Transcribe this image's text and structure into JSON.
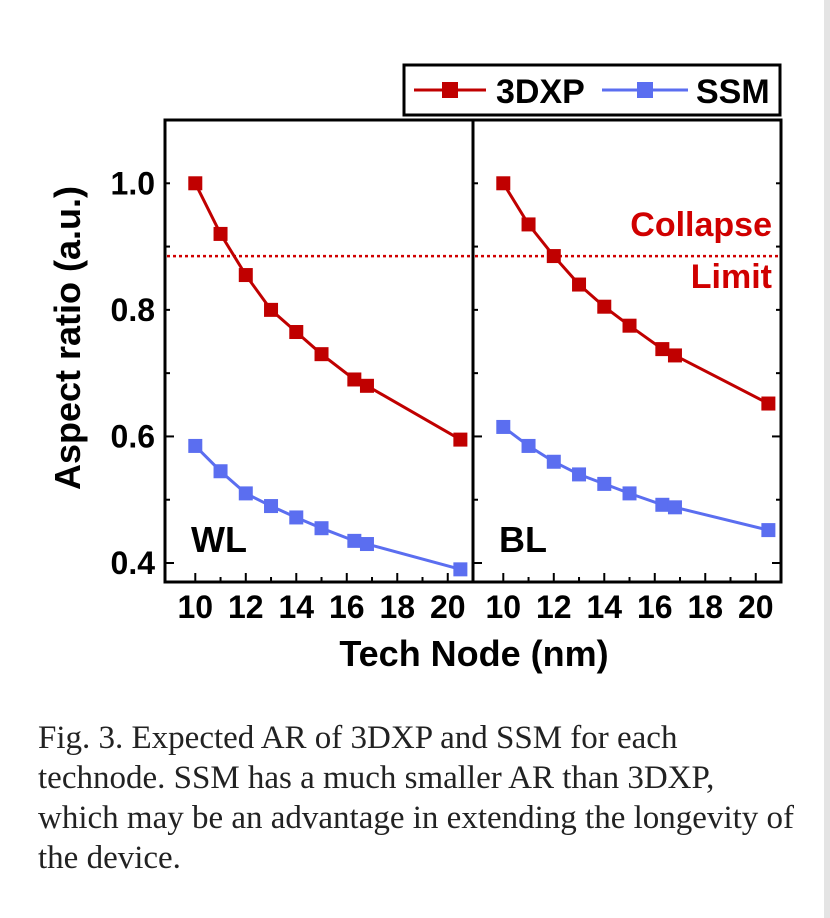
{
  "chart_data": {
    "type": "line",
    "legend": {
      "placement": "top-right",
      "entries": [
        {
          "name": "3DXP",
          "color": "#c00000"
        },
        {
          "name": "SSM",
          "color": "#5b6ef0"
        }
      ]
    },
    "xlabel": "Tech Node (nm)",
    "ylabel": "Aspect ratio (a.u.)",
    "xlim": [
      8.8,
      21.0
    ],
    "ylim": [
      0.37,
      1.1
    ],
    "x_ticks": [
      "10",
      "12",
      "14",
      "16",
      "18",
      "20"
    ],
    "y_ticks": [
      "0.4",
      "0.6",
      "0.8",
      "1.0"
    ],
    "reference_line": {
      "y": 0.885,
      "label_line1": "Collapse",
      "label_line2": "Limit",
      "color": "#d00000",
      "style": "dotted"
    },
    "panels": [
      {
        "label": "WL",
        "series": [
          {
            "name": "3DXP",
            "x": [
              10,
              11,
              12,
              13,
              14,
              15,
              16.3,
              16.8,
              20.5
            ],
            "y": [
              1.0,
              0.92,
              0.855,
              0.8,
              0.765,
              0.73,
              0.69,
              0.68,
              0.595
            ]
          },
          {
            "name": "SSM",
            "x": [
              10,
              11,
              12,
              13,
              14,
              15,
              16.3,
              16.8,
              20.5
            ],
            "y": [
              0.585,
              0.545,
              0.51,
              0.49,
              0.472,
              0.455,
              0.435,
              0.43,
              0.39
            ]
          }
        ]
      },
      {
        "label": "BL",
        "series": [
          {
            "name": "3DXP",
            "x": [
              10,
              11,
              12,
              13,
              14,
              15,
              16.3,
              16.8,
              20.5
            ],
            "y": [
              1.0,
              0.935,
              0.885,
              0.84,
              0.805,
              0.775,
              0.738,
              0.728,
              0.652
            ]
          },
          {
            "name": "SSM",
            "x": [
              10,
              11,
              12,
              13,
              14,
              15,
              16.3,
              16.8,
              20.5
            ],
            "y": [
              0.615,
              0.585,
              0.56,
              0.54,
              0.525,
              0.51,
              0.492,
              0.488,
              0.452
            ]
          }
        ]
      }
    ]
  },
  "caption": "Fig. 3. Expected AR of 3DXP and SSM for each technode. SSM has a much smaller AR than 3DXP, which may be an advantage in extending the longevity of the device."
}
